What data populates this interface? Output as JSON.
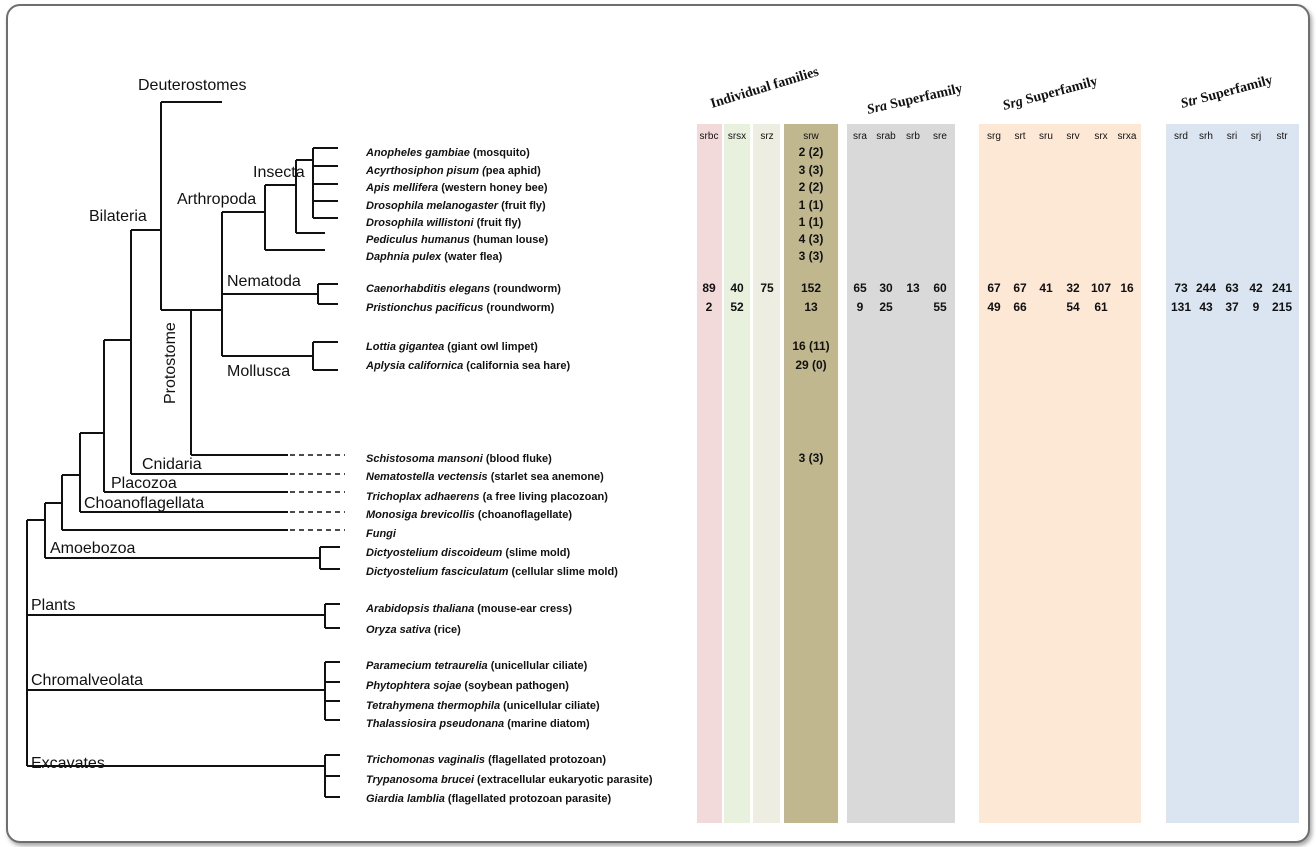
{
  "clades": {
    "deuterostomes": "Deuterostomes",
    "bilateria": "Bilateria",
    "arthropoda": "Arthropoda",
    "insecta": "Insecta",
    "nematoda": "Nematoda",
    "mollusca": "Mollusca",
    "protostome": "Protostome",
    "cnidaria": "Cnidaria",
    "placozoa": "Placozoa",
    "choanoflagellata": "Choanoflagellata",
    "amoebozoa": "Amoebozoa",
    "plants": "Plants",
    "chromalveolata": "Chromalveolata",
    "excavates": "Excavates"
  },
  "groups": [
    {
      "label": "Individual families"
    },
    {
      "label": "Sra Superfamily",
      "italic": "Sra",
      "rest": " Superfamily"
    },
    {
      "label": "Srg Superfamily",
      "italic": "Srg",
      "rest": " Superfamily"
    },
    {
      "label": "Str Superfamily",
      "italic": "Str",
      "rest": " Superfamily"
    }
  ],
  "columns": [
    "srbc",
    "srsx",
    "srz",
    "srw",
    "sra",
    "srab",
    "srb",
    "sre",
    "srg",
    "srt",
    "sru",
    "srv",
    "srx",
    "srxa",
    "srd",
    "srh",
    "sri",
    "srj",
    "str"
  ],
  "column_colors": {
    "srbc": "#f2dada",
    "srsx": "#e8f1de",
    "srz": "#eeede2",
    "srw": "#c0b78f",
    "sra_group": "#d9d9d9",
    "srg_group": "#fde7d5",
    "str_group": "#dbe5f1"
  },
  "species": [
    {
      "genus": "Anopheles gambiae",
      "common": " (mosquito)",
      "srw": "2 (2)"
    },
    {
      "genus": "Acyrthosiphon pisum (",
      "common": "pea aphid)",
      "srw": "3 (3)"
    },
    {
      "genus": "Apis mellifera",
      "common": " (western honey bee)",
      "srw": "2 (2)"
    },
    {
      "genus": "Drosophila melanogaster",
      "common": " (fruit fly)",
      "srw": "1 (1)"
    },
    {
      "genus": "Drosophila willistoni",
      "common": " (fruit fly)",
      "srw": "1 (1)"
    },
    {
      "genus": "Pediculus humanus",
      "common": " (human louse)",
      "srw": "4 (3)"
    },
    {
      "genus": "Daphnia pulex",
      "common": " (water flea)",
      "srw": "3 (3)"
    },
    {
      "genus": "Caenorhabditis elegans",
      "common": " (roundworm)",
      "srbc": "89",
      "srsx": "40",
      "srz": "75",
      "srw": "152",
      "sra": "65",
      "srab": "30",
      "srb": "13",
      "sre": "60",
      "srg": "67",
      "srt": "67",
      "sru": "41",
      "srv": "32",
      "srx": "107",
      "srxa": "16",
      "srd": "73",
      "srh": "244",
      "sri": "63",
      "srj": "42",
      "str": "241"
    },
    {
      "genus": "Pristionchus pacificus",
      "common": " (roundworm)",
      "srbc": "2",
      "srsx": "52",
      "srw": "13",
      "sra": "9",
      "srab": "25",
      "sre": "55",
      "srg": "49",
      "srt": "66",
      "srv": "54",
      "srx": "61",
      "srd": "131",
      "srh": "43",
      "sri": "37",
      "srj": "9",
      "str": "215"
    },
    {
      "genus": "Lottia gigantea",
      "common": " (giant owl limpet)",
      "srw": "16 (11)"
    },
    {
      "genus": "Aplysia californica",
      "common": " (california sea hare)",
      "srw": "29 (0)"
    },
    {
      "genus": "Schistosoma mansoni",
      "common": " (blood fluke)",
      "srw": "3 (3)"
    },
    {
      "genus": "Nematostella vectensis",
      "common": " (starlet sea anemone)"
    },
    {
      "genus": "Trichoplax adhaerens",
      "common": " (a free living placozoan)"
    },
    {
      "genus": "Monosiga brevicollis",
      "common": " (choanoflagellate)"
    },
    {
      "genus": "Fungi",
      "common": ""
    },
    {
      "genus": "Dictyostelium discoideum",
      "common": " (slime mold)"
    },
    {
      "genus": "Dictyostelium fasciculatum",
      "common": " (cellular slime mold)"
    },
    {
      "genus": "Arabidopsis thaliana",
      "common": " (mouse-ear cress)"
    },
    {
      "genus": "Oryza sativa",
      "common": " (rice)"
    },
    {
      "genus": "Paramecium tetraurelia",
      "common": " (unicellular ciliate)"
    },
    {
      "genus": "Phytophtera sojae",
      "common": " (soybean pathogen)"
    },
    {
      "genus": "Tetrahymena thermophila",
      "common": " (unicellular ciliate)"
    },
    {
      "genus": "Thalassiosira pseudonana",
      "common": " (marine diatom)"
    },
    {
      "genus": "Trichomonas vaginalis",
      "common": " (flagellated protozoan)"
    },
    {
      "genus": "Trypanosoma brucei",
      "common": " (extracellular eukaryotic parasite)"
    },
    {
      "genus": "Giardia lamblia",
      "common": " (flagellated protozoan parasite)"
    }
  ]
}
